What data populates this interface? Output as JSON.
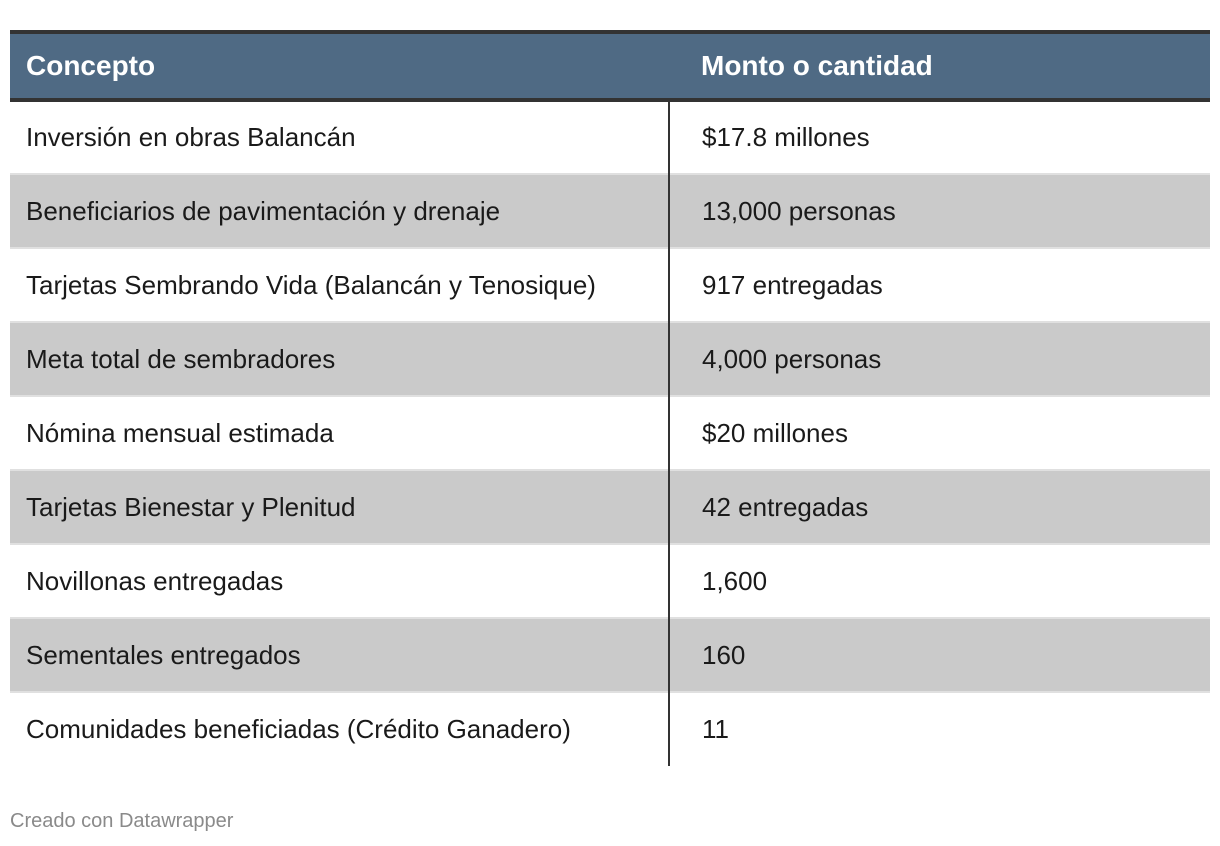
{
  "chart_data": {
    "type": "table",
    "columns": [
      "Concepto",
      "Monto o cantidad"
    ],
    "rows": [
      [
        "Inversión en obras Balancán",
        "$17.8 millones"
      ],
      [
        "Beneficiarios de pavimentación y drenaje",
        "13,000 personas"
      ],
      [
        "Tarjetas Sembrando Vida (Balancán y Tenosique)",
        "917 entregadas"
      ],
      [
        "Meta total de sembradores",
        "4,000 personas"
      ],
      [
        "Nómina mensual estimada",
        "$20 millones"
      ],
      [
        "Tarjetas Bienestar y Plenitud",
        "42 entregadas"
      ],
      [
        "Novillonas entregadas",
        "1,600"
      ],
      [
        "Sementales entregados",
        "160"
      ],
      [
        "Comunidades beneficiadas (Crédito Ganadero)",
        "11"
      ]
    ],
    "header_color": "#4f6a84",
    "stripe_color": "#cacaca"
  },
  "footer": {
    "credit": "Creado con Datawrapper"
  }
}
